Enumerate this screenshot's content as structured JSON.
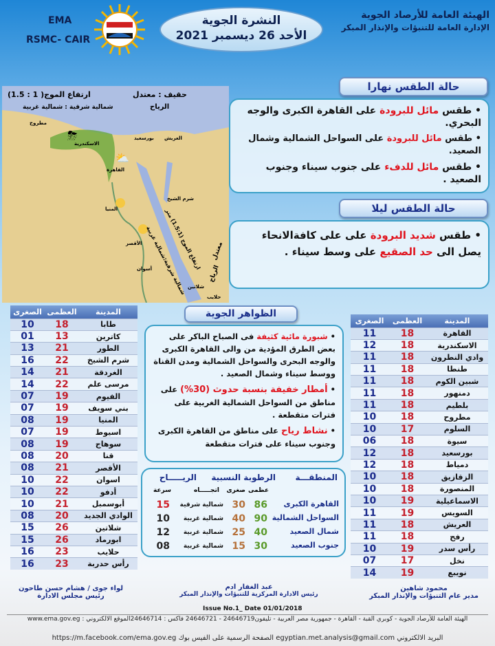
{
  "header": {
    "org_name": "الهيئة العامة للأرصاد الجوية",
    "org_dept": "الإدارة العامة للتنبؤات والإنذار المبكر",
    "bulletin_title": "النشرة الجوية",
    "date": "الأحد 26 ديسمبر 2021",
    "ema": "EMA",
    "rsmc": "RSMC- CAIR"
  },
  "map": {
    "sea_state": "حقيف : معتدل",
    "wave_height": "ارتفاع الموج( 1 : 1.5)",
    "winds_label": "الرياح",
    "winds_dir": "شمالية شرقية : شمالية غربية",
    "red_sea_wave": "ارتفاع الموج (1.5:1) متر",
    "red_sea_wind": "شمالية شرقية:شمالية غربية",
    "red_sea_state": "معتدل",
    "red_sea_winds_label": "الرياح",
    "cities": [
      "مطروح",
      "الاسكندرية",
      "بورسعيد",
      "العريش",
      "القاهرة",
      "شرم الشيخ",
      "المنيا",
      "الأقصر",
      "أسوان",
      "شلاتين",
      "حلايب"
    ]
  },
  "day": {
    "title": "حالة الطقس نهارا",
    "items": [
      {
        "pre": "طقس ",
        "hl": "مائل للبرودة",
        "post": " على القاهرة الكبرى والوجه البحري."
      },
      {
        "pre": "طقس ",
        "hl": "مائل للبرودة",
        "post": " على السواحل الشمالية وشمال الصعيد."
      },
      {
        "pre": "طقس ",
        "hl": "مائل للدفء",
        "post": " على جنوب سيناء وجنوب الصعيد ."
      }
    ]
  },
  "night": {
    "title": "حالة الطقس ليلا",
    "pre": "طقس ",
    "hl": "شديد البرودة",
    "mid": " على على كافةالانحاء يصل الى ",
    "hl2": "حد الصقيع",
    "post": " على وسط سيناء ."
  },
  "phenomena": {
    "title": "الظواهر الجوية",
    "items": [
      {
        "hl": "شبورة مائية كثيفة",
        "post": " فى الصباح الباكر على بعض الطرق المؤدية من والى القاهرة الكبرى والوجه البحرى والسواحل الشمالية ومدن القناة ووسط سيناء وشمال الصعيد ."
      },
      {
        "hl": "أمطار خفيفة بنسبة حدوث (30%)",
        "post": " على مناطق من السواحل الشمالية الغربية على فترات متقطعة ."
      },
      {
        "hl": "نشاط رياح",
        "post": " على مناطق من القاهرة الكبرى وجنوب سيناء على فترات متقطعة"
      }
    ]
  },
  "humidity": {
    "h_region": "المنطقـــة",
    "h_humidity": "الرطوبة النسبية",
    "h_wind": "الريـــــاح",
    "h_max": "عظمى",
    "h_min": "صغرى",
    "h_dir": "اتجـــــاه",
    "h_speed": "سرعة",
    "rows": [
      {
        "region": "القاهرة الكبرى",
        "max": "86",
        "min": "30",
        "dir": "شمالية شرقية",
        "speed": "15"
      },
      {
        "region": "السواحل الشمالية",
        "max": "90",
        "min": "40",
        "dir": "شمالية غربية",
        "speed": "10"
      },
      {
        "region": "شمال الصعيد",
        "max": "40",
        "min": "25",
        "dir": "شمالية غربية",
        "speed": "12"
      },
      {
        "region": "جنوب الصعيد",
        "max": "30",
        "min": "15",
        "dir": "شمالية غربية",
        "speed": "08"
      }
    ]
  },
  "table_headers": {
    "city": "المدينة",
    "max": "العظمى",
    "min": "الصغرى"
  },
  "left_table": [
    [
      "طابا",
      "18",
      "10"
    ],
    [
      "كاترين",
      "13",
      "01"
    ],
    [
      "الطور",
      "21",
      "13"
    ],
    [
      "شرم الشيخ",
      "22",
      "16"
    ],
    [
      "الغردقة",
      "21",
      "14"
    ],
    [
      "مرسى علم",
      "22",
      "14"
    ],
    [
      "الفيوم",
      "19",
      "07"
    ],
    [
      "بني سويف",
      "19",
      "07"
    ],
    [
      "المنيا",
      "19",
      "08"
    ],
    [
      "اسيوط",
      "19",
      "07"
    ],
    [
      "سوهاج",
      "19",
      "08"
    ],
    [
      "قنا",
      "20",
      "08"
    ],
    [
      "الأقصر",
      "21",
      "08"
    ],
    [
      "اسوان",
      "22",
      "10"
    ],
    [
      "أدفو",
      "22",
      "10"
    ],
    [
      "أبوسمبل",
      "21",
      "10"
    ],
    [
      "الوادي الجديد",
      "20",
      "08"
    ],
    [
      "شلاتين",
      "26",
      "15"
    ],
    [
      "ابورماد",
      "26",
      "15"
    ],
    [
      "حلايب",
      "23",
      "16"
    ],
    [
      "رأس حدربة",
      "23",
      "16"
    ]
  ],
  "right_table": [
    [
      "القاهرة",
      "18",
      "11"
    ],
    [
      "الاسكندرية",
      "18",
      "12"
    ],
    [
      "وادي النطرون",
      "18",
      "11"
    ],
    [
      "طنطا",
      "18",
      "11"
    ],
    [
      "شبين الكوم",
      "18",
      "11"
    ],
    [
      "دمنهور",
      "18",
      "11"
    ],
    [
      "بلطيم",
      "18",
      "11"
    ],
    [
      "مطروح",
      "18",
      "10"
    ],
    [
      "السلوم",
      "17",
      "10"
    ],
    [
      "سيوة",
      "18",
      "06"
    ],
    [
      "بورسعيد",
      "18",
      "12"
    ],
    [
      "دمياط",
      "18",
      "12"
    ],
    [
      "الزقازيق",
      "18",
      "10"
    ],
    [
      "المنصورة",
      "18",
      "10"
    ],
    [
      "الاسماعيلية",
      "19",
      "10"
    ],
    [
      "السويس",
      "19",
      "11"
    ],
    [
      "العريش",
      "18",
      "11"
    ],
    [
      "رفح",
      "18",
      "11"
    ],
    [
      "رأس سدر",
      "19",
      "10"
    ],
    [
      "نخل",
      "17",
      "07"
    ],
    [
      "نويبع",
      "19",
      "14"
    ]
  ],
  "footer": {
    "sig1_name": "لواء جوى / هشام حسن طاحون",
    "sig1_title": "رئيس مجلس الادارة",
    "sig2_name": "عبد الغفار ادم",
    "sig2_title": "رئيس الادارة المركزية للتنبؤات والإنذار المبكر",
    "sig3_name": "محمود شاهين",
    "sig3_title": "مدير عام التنبؤات والإنذار المبكر",
    "issue": "Issue No.1_ Date 01/01/2018",
    "address": "الهيئة العامة للأرصاد الجوية - كوبري القبة - القاهرة - جمهورية مصر العربية - تليفون24646719 - 24646721 فاكس : 24646714الموقع الالكتروني : www.ema.gov.eg",
    "contact": "البريد الالكتروني egyptian.met.analysis@gmail.com الصفحة الرسمية على الفيس بوك https://m.facebook.com/ema.gov.eg"
  },
  "colors": {
    "highlight": "#e0141e",
    "title_blue": "#1b2f8a",
    "max_red": "#c41e2b",
    "min_blue": "#1a2a8c",
    "hum_max": "#5a9a2a",
    "hum_min": "#b5713a"
  }
}
